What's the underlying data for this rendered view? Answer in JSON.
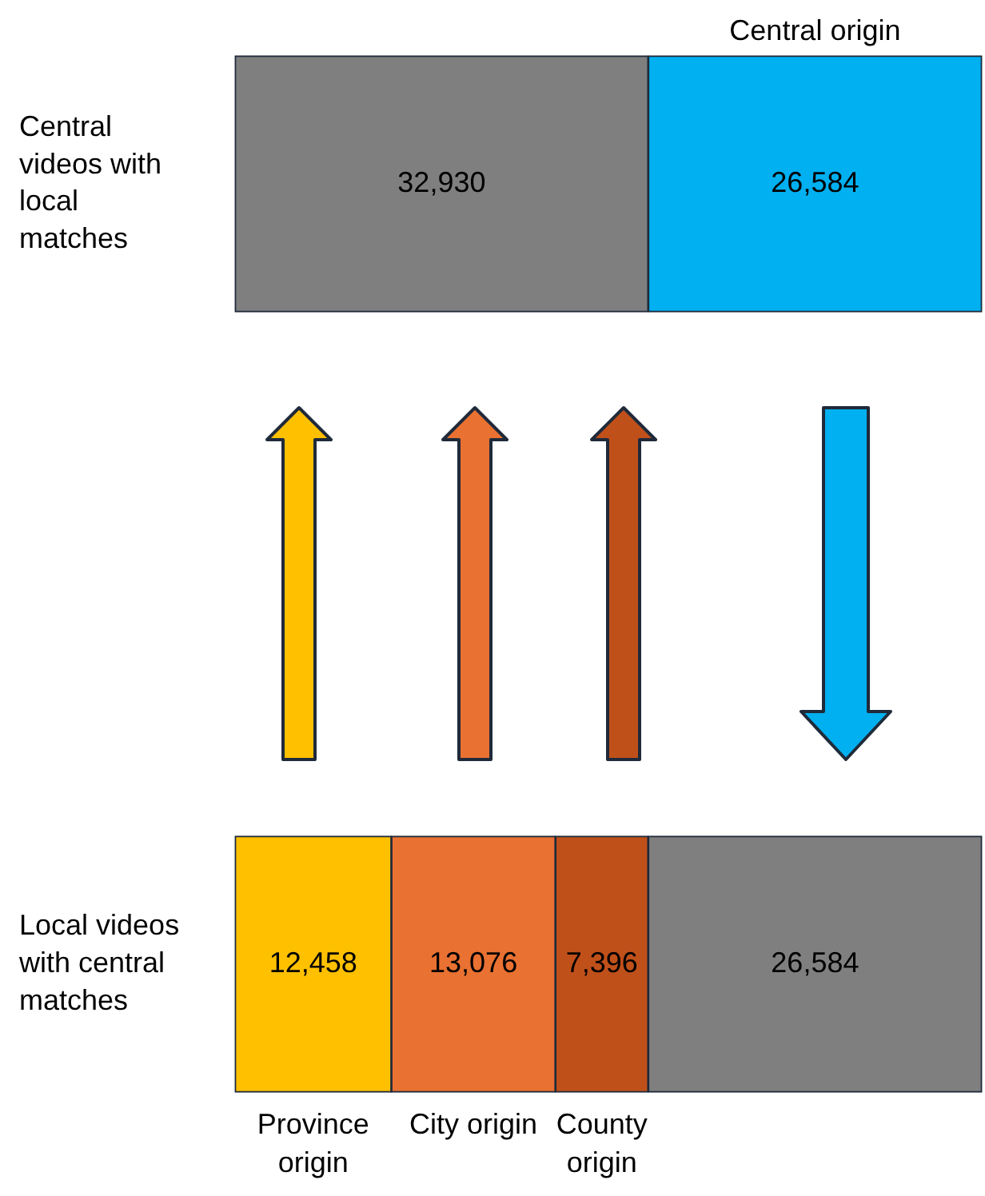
{
  "chart_data": {
    "type": "bar",
    "orientation": "horizontal",
    "stacked": true,
    "categories": [
      "Central videos with local matches",
      "Local videos with central matches"
    ],
    "series": [
      {
        "color": "#7f7f7f",
        "values": [
          32930,
          null
        ],
        "value_labels": [
          "32,930",
          null
        ]
      },
      {
        "name": "Central origin",
        "color": "#00b0f0",
        "values": [
          26584,
          null
        ],
        "value_labels": [
          "26,584",
          null
        ]
      },
      {
        "name": "Province origin",
        "color": "#ffc000",
        "values": [
          null,
          12458
        ],
        "value_labels": [
          null,
          "12,458"
        ]
      },
      {
        "name": "City origin",
        "color": "#e97132",
        "values": [
          null,
          13076
        ],
        "value_labels": [
          null,
          "13,076"
        ]
      },
      {
        "name": "County origin",
        "color": "#c0501a",
        "values": [
          null,
          7396
        ],
        "value_labels": [
          null,
          "7,396"
        ]
      },
      {
        "color": "#7f7f7f",
        "values": [
          null,
          26584
        ],
        "value_labels": [
          null,
          "26,584"
        ]
      }
    ],
    "tick_labels": "y",
    "legend": false,
    "grid": false
  }
}
